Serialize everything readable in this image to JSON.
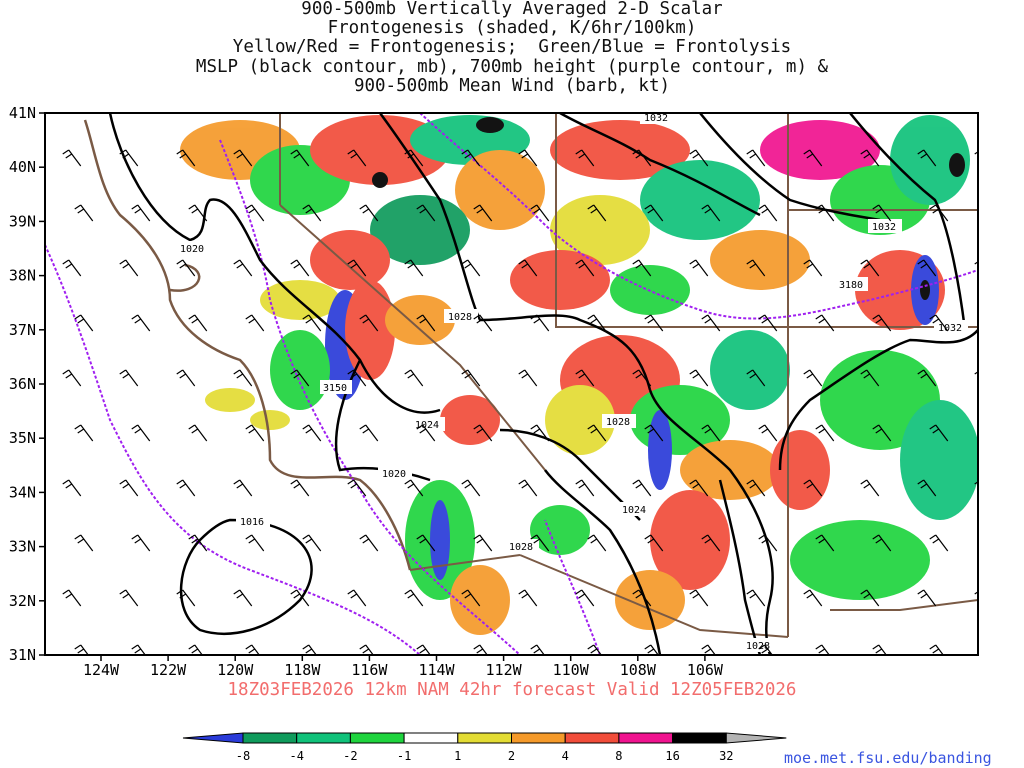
{
  "title_lines": [
    "900-500mb Vertically Averaged 2-D Scalar",
    "Frontogenesis (shaded, K/6hr/100km)",
    "Yellow/Red = Frontogenesis;  Green/Blue = Frontolysis",
    "MSLP (black contour, mb), 700mb height (purple contour, m) &",
    "900-500mb Mean Wind (barb, kt)"
  ],
  "lat_labels": [
    "41N",
    "40N",
    "39N",
    "38N",
    "37N",
    "36N",
    "35N",
    "34N",
    "33N",
    "32N",
    "31N"
  ],
  "lon_labels": [
    "124W",
    "122W",
    "120W",
    "118W",
    "116W",
    "114W",
    "112W",
    "110W",
    "108W",
    "106W"
  ],
  "contour_labels": {
    "mslp": [
      "1020",
      "1028",
      "1032",
      "1032",
      "1024",
      "1028",
      "1020",
      "1024",
      "1016",
      "1028",
      "1028",
      "1032"
    ],
    "height_700": [
      "3150",
      "3180"
    ]
  },
  "forecast_line": "18Z03FEB2026 12km NAM 42hr forecast Valid 12Z05FEB2026",
  "colorbar": {
    "labels": [
      "-8",
      "-4",
      "-2",
      "-1",
      "1",
      "2",
      "4",
      "8",
      "16",
      "32"
    ],
    "colors": [
      "#2a3bd9",
      "#0f9b5c",
      "#10c27a",
      "#1fd43e",
      "#ffffff",
      "#e3dc34",
      "#f59a2a",
      "#f14d3a",
      "#f0138f",
      "#000000",
      "#b4b4b4"
    ]
  },
  "credit": "moe.met.fsu.edu/banding",
  "colors": {
    "mslp": "#000000",
    "height": "#a020f0",
    "coast": "#7a5a45",
    "forecast": "#f26d6d",
    "credit": "#3a55e0"
  }
}
